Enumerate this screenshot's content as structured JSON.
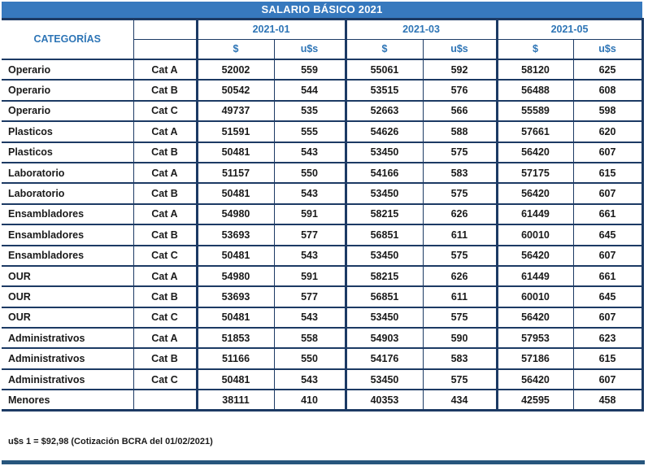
{
  "accent_colors": {
    "title_bar_bg": "#3779BE",
    "title_text": "#FFFFFF",
    "border_navy": "#1C3A64",
    "header_text_blue": "#2E75B6",
    "data_text": "#1A1A1A",
    "bottom_bar": "#27567D"
  },
  "table": {
    "title": "SALARIO BÁSICO 2021",
    "categories_header": "CATEGORÍAS",
    "months": [
      "2021-01",
      "2021-03",
      "2021-05"
    ],
    "currency": {
      "peso": "$",
      "usd": "u$s"
    },
    "rows": [
      {
        "category": "Operario",
        "cat": "Cat A",
        "values": [
          52002,
          559,
          55061,
          592,
          58120,
          625
        ]
      },
      {
        "category": "Operario",
        "cat": "Cat B",
        "values": [
          50542,
          544,
          53515,
          576,
          56488,
          608
        ]
      },
      {
        "category": "Operario",
        "cat": "Cat C",
        "values": [
          49737,
          535,
          52663,
          566,
          55589,
          598
        ]
      },
      {
        "category": "Plasticos",
        "cat": "Cat A",
        "values": [
          51591,
          555,
          54626,
          588,
          57661,
          620
        ]
      },
      {
        "category": "Plasticos",
        "cat": "Cat B",
        "values": [
          50481,
          543,
          53450,
          575,
          56420,
          607
        ]
      },
      {
        "category": "Laboratorio",
        "cat": "Cat A",
        "values": [
          51157,
          550,
          54166,
          583,
          57175,
          615
        ]
      },
      {
        "category": "Laboratorio",
        "cat": "Cat B",
        "values": [
          50481,
          543,
          53450,
          575,
          56420,
          607
        ]
      },
      {
        "category": "Ensambladores",
        "cat": "Cat A",
        "values": [
          54980,
          591,
          58215,
          626,
          61449,
          661
        ]
      },
      {
        "category": "Ensambladores",
        "cat": "Cat B",
        "values": [
          53693,
          577,
          56851,
          611,
          60010,
          645
        ]
      },
      {
        "category": "Ensambladores",
        "cat": "Cat C",
        "values": [
          50481,
          543,
          53450,
          575,
          56420,
          607
        ]
      },
      {
        "category": "OUR",
        "cat": "Cat A",
        "values": [
          54980,
          591,
          58215,
          626,
          61449,
          661
        ]
      },
      {
        "category": "OUR",
        "cat": "Cat B",
        "values": [
          53693,
          577,
          56851,
          611,
          60010,
          645
        ]
      },
      {
        "category": "OUR",
        "cat": "Cat C",
        "values": [
          50481,
          543,
          53450,
          575,
          56420,
          607
        ]
      },
      {
        "category": "Administrativos",
        "cat": "Cat A",
        "values": [
          51853,
          558,
          54903,
          590,
          57953,
          623
        ]
      },
      {
        "category": "Administrativos",
        "cat": "Cat B",
        "values": [
          51166,
          550,
          54176,
          583,
          57186,
          615
        ]
      },
      {
        "category": "Administrativos",
        "cat": "Cat C",
        "values": [
          50481,
          543,
          53450,
          575,
          56420,
          607
        ]
      },
      {
        "category": "Menores",
        "cat": "",
        "values": [
          38111,
          410,
          40353,
          434,
          42595,
          458
        ]
      }
    ]
  },
  "footer": {
    "note": "u$s 1 = $92,98 (Cotización BCRA del 01/02/2021)"
  }
}
